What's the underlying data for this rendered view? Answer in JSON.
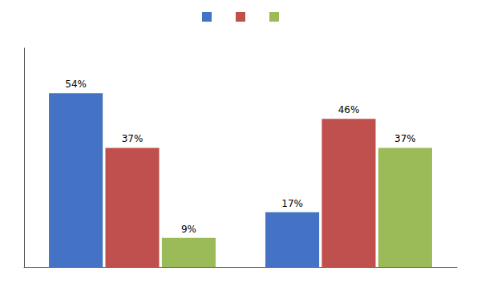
{
  "chart_data": {
    "type": "bar",
    "categories": [
      null,
      null
    ],
    "series": [
      {
        "color": "#4472C4",
        "values": [
          54,
          17
        ],
        "value_labels": [
          "54%",
          "17%"
        ]
      },
      {
        "color": "#C0504D",
        "values": [
          37,
          46
        ],
        "value_labels": [
          "37%",
          "46%"
        ]
      },
      {
        "color": "#9BBB59",
        "values": [
          9,
          37
        ],
        "value_labels": [
          "9%",
          "37%"
        ]
      }
    ],
    "ylim": [
      0,
      68
    ],
    "tick_labels": false,
    "grid": false,
    "data_labels": true,
    "legend": "top"
  }
}
